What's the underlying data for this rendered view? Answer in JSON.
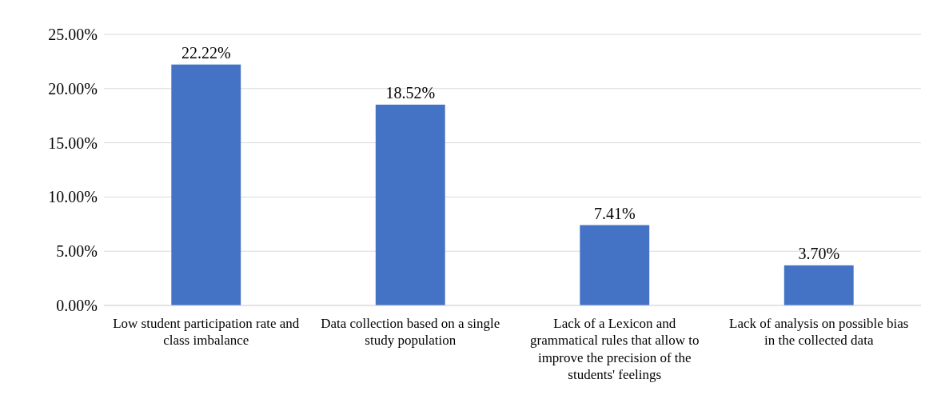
{
  "chart_data": {
    "type": "bar",
    "categories": [
      "Low student participation rate and class imbalance",
      "Data collection based on a single study population",
      "Lack of a Lexicon and grammatical rules that allow to improve the precision of the students' feelings",
      "Lack of analysis on possible bias in the collected data"
    ],
    "values": [
      22.22,
      18.52,
      7.41,
      3.7
    ],
    "value_labels": [
      "22.22%",
      "18.52%",
      "7.41%",
      "3.70%"
    ],
    "color": "#4472c4",
    "ylim": [
      0,
      25
    ],
    "yticks": [
      {
        "value": 0,
        "label": "0.00%"
      },
      {
        "value": 5,
        "label": "5.00%"
      },
      {
        "value": 10,
        "label": "10.00%"
      },
      {
        "value": 15,
        "label": "15.00%"
      },
      {
        "value": 20,
        "label": "20.00%"
      },
      {
        "value": 25,
        "label": "25.00%"
      }
    ],
    "grid": "y"
  }
}
